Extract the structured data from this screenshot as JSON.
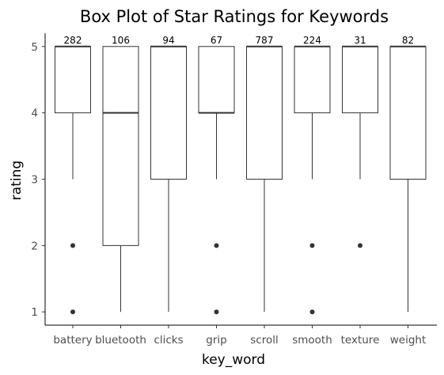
{
  "chart_data": {
    "type": "box",
    "title": "Box Plot of Star Ratings for Keywords",
    "xlabel": "key_word",
    "ylabel": "rating",
    "ylim": [
      0.8,
      5.2
    ],
    "yticks": [
      1,
      2,
      3,
      4,
      5
    ],
    "grid": false,
    "categories": [
      "battery",
      "bluetooth",
      "clicks",
      "grip",
      "scroll",
      "smooth",
      "texture",
      "weight"
    ],
    "boxes": [
      {
        "category": "battery",
        "q1": 4,
        "median": 5,
        "q3": 5,
        "whisker_low": 3,
        "whisker_high": 5,
        "outliers": [
          2,
          1
        ],
        "count": "282"
      },
      {
        "category": "bluetooth",
        "q1": 2,
        "median": 4,
        "q3": 5,
        "whisker_low": 1,
        "whisker_high": 5,
        "outliers": [],
        "count": "106"
      },
      {
        "category": "clicks",
        "q1": 3,
        "median": 5,
        "q3": 5,
        "whisker_low": 1,
        "whisker_high": 5,
        "outliers": [],
        "count": "94"
      },
      {
        "category": "grip",
        "q1": 4,
        "median": 4,
        "q3": 5,
        "whisker_low": 3,
        "whisker_high": 5,
        "outliers": [
          2,
          1
        ],
        "count": "67"
      },
      {
        "category": "scroll",
        "q1": 3,
        "median": 5,
        "q3": 5,
        "whisker_low": 1,
        "whisker_high": 5,
        "outliers": [],
        "count": "787"
      },
      {
        "category": "smooth",
        "q1": 4,
        "median": 5,
        "q3": 5,
        "whisker_low": 3,
        "whisker_high": 5,
        "outliers": [
          2,
          1
        ],
        "count": "224"
      },
      {
        "category": "texture",
        "q1": 4,
        "median": 5,
        "q3": 5,
        "whisker_low": 3,
        "whisker_high": 5,
        "outliers": [
          2
        ],
        "count": "31"
      },
      {
        "category": "weight",
        "q1": 3,
        "median": 5,
        "q3": 5,
        "whisker_low": 1,
        "whisker_high": 5,
        "outliers": [],
        "count": "82"
      }
    ]
  }
}
